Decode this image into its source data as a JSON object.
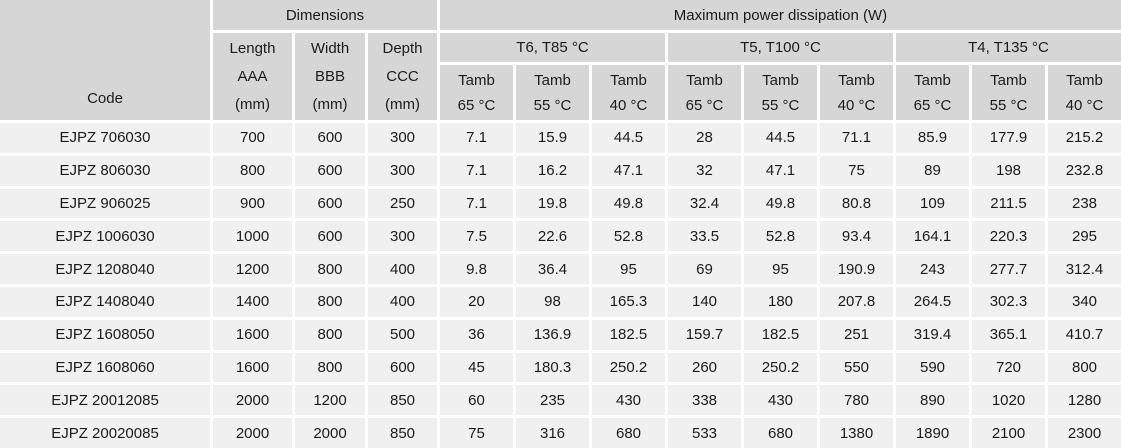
{
  "chart_data": {
    "type": "table",
    "header": {
      "code": "Code",
      "dimensions_group": "Dimensions",
      "power_group": "Maximum power dissipation (W)",
      "dim_cols": [
        {
          "label": "Length",
          "designator": "AAA",
          "unit": "(mm)"
        },
        {
          "label": "Width",
          "designator": "BBB",
          "unit": "(mm)"
        },
        {
          "label": "Depth",
          "designator": "CCC",
          "unit": "(mm)"
        }
      ],
      "temp_classes": [
        "T6, T85 °C",
        "T5, T100 °C",
        "T4, T135 °C"
      ],
      "tamb_label": "Tamb",
      "ambient_temps": [
        "65 °C",
        "55 °C",
        "40 °C"
      ]
    },
    "rows": [
      {
        "code": "EJPZ 706030",
        "length": "700",
        "width": "600",
        "depth": "300",
        "power_w": [
          "7.1",
          "15.9",
          "44.5",
          "28",
          "44.5",
          "71.1",
          "85.9",
          "177.9",
          "215.2"
        ]
      },
      {
        "code": "EJPZ 806030",
        "length": "800",
        "width": "600",
        "depth": "300",
        "power_w": [
          "7.1",
          "16.2",
          "47.1",
          "32",
          "47.1",
          "75",
          "89",
          "198",
          "232.8"
        ]
      },
      {
        "code": "EJPZ 906025",
        "length": "900",
        "width": "600",
        "depth": "250",
        "power_w": [
          "7.1",
          "19.8",
          "49.8",
          "32.4",
          "49.8",
          "80.8",
          "109",
          "211.5",
          "238"
        ]
      },
      {
        "code": "EJPZ 1006030",
        "length": "1000",
        "width": "600",
        "depth": "300",
        "power_w": [
          "7.5",
          "22.6",
          "52.8",
          "33.5",
          "52.8",
          "93.4",
          "164.1",
          "220.3",
          "295"
        ]
      },
      {
        "code": "EJPZ 1208040",
        "length": "1200",
        "width": "800",
        "depth": "400",
        "power_w": [
          "9.8",
          "36.4",
          "95",
          "69",
          "95",
          "190.9",
          "243",
          "277.7",
          "312.4"
        ]
      },
      {
        "code": "EJPZ 1408040",
        "length": "1400",
        "width": "800",
        "depth": "400",
        "power_w": [
          "20",
          "98",
          "165.3",
          "140",
          "180",
          "207.8",
          "264.5",
          "302.3",
          "340"
        ]
      },
      {
        "code": "EJPZ 1608050",
        "length": "1600",
        "width": "800",
        "depth": "500",
        "power_w": [
          "36",
          "136.9",
          "182.5",
          "159.7",
          "182.5",
          "251",
          "319.4",
          "365.1",
          "410.7"
        ]
      },
      {
        "code": "EJPZ 1608060",
        "length": "1600",
        "width": "800",
        "depth": "600",
        "power_w": [
          "45",
          "180.3",
          "250.2",
          "260",
          "250.2",
          "550",
          "590",
          "720",
          "800"
        ]
      },
      {
        "code": "EJPZ 20012085",
        "length": "2000",
        "width": "1200",
        "depth": "850",
        "power_w": [
          "60",
          "235",
          "430",
          "338",
          "430",
          "780",
          "890",
          "1020",
          "1280"
        ]
      },
      {
        "code": "EJPZ 20020085",
        "length": "2000",
        "width": "2000",
        "depth": "850",
        "power_w": [
          "75",
          "316",
          "680",
          "533",
          "680",
          "1380",
          "1890",
          "2100",
          "2300"
        ]
      }
    ]
  },
  "colors": {
    "header_bg": "#d6d6d6",
    "row_bg": "#f0f0f0",
    "gap": "#ffffff",
    "text": "#1b1b1b"
  }
}
